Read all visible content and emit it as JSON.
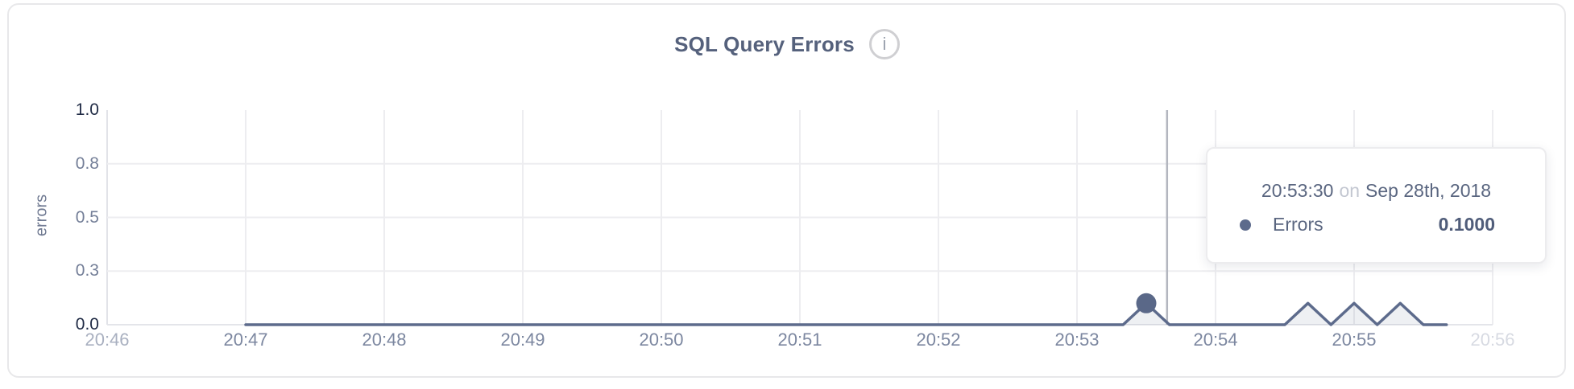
{
  "header": {
    "title": "SQL Query Errors",
    "info_icon_glyph": "i"
  },
  "tooltip": {
    "time": "20:53:30",
    "on_word": "on",
    "date": "Sep 28th, 2018",
    "series_label": "Errors",
    "value": "0.1000"
  },
  "colors": {
    "line": "#5d6b8c",
    "area_fill": "rgba(93,107,140,0.10)",
    "marker": "#5a6888",
    "grid": "#ededf0",
    "axis_line": "#e2e3e8",
    "bottom_axis": "#e4e5ea",
    "crosshair": "#b3b6bf"
  },
  "chart_data": {
    "type": "area",
    "title": "SQL Query Errors",
    "xlabel": "",
    "ylabel": "errors",
    "ylim": [
      0,
      1.0
    ],
    "grid": true,
    "legend": false,
    "x_axis_range": [
      "20:46:00",
      "20:56:00"
    ],
    "x_ticks": [
      {
        "label": "20:46",
        "muted": true
      },
      {
        "label": "20:47"
      },
      {
        "label": "20:48"
      },
      {
        "label": "20:49"
      },
      {
        "label": "20:50"
      },
      {
        "label": "20:51"
      },
      {
        "label": "20:52"
      },
      {
        "label": "20:53"
      },
      {
        "label": "20:54"
      },
      {
        "label": "20:55"
      },
      {
        "label": "20:56",
        "faint": true
      }
    ],
    "y_ticks": [
      {
        "label": "1.0",
        "value": 1.0,
        "strong": true
      },
      {
        "label": "0.8",
        "value": 0.75
      },
      {
        "label": "0.5",
        "value": 0.5
      },
      {
        "label": "0.3",
        "value": 0.25
      },
      {
        "label": "0.0",
        "value": 0.0,
        "strong": true
      }
    ],
    "x_start": "20:47:00",
    "x_interval_seconds": 10,
    "series": [
      {
        "name": "Errors",
        "values": [
          0,
          0,
          0,
          0,
          0,
          0,
          0,
          0,
          0,
          0,
          0,
          0,
          0,
          0,
          0,
          0,
          0,
          0,
          0,
          0,
          0,
          0,
          0,
          0,
          0,
          0,
          0,
          0,
          0,
          0,
          0,
          0,
          0,
          0,
          0,
          0,
          0,
          0,
          0,
          0.1,
          0,
          0,
          0,
          0,
          0,
          0,
          0.1,
          0,
          0.1,
          0,
          0.1,
          0,
          0
        ]
      }
    ],
    "hover_point": {
      "time": "20:53:30",
      "value": 0.1
    },
    "crosshair_time": "20:53:39"
  }
}
